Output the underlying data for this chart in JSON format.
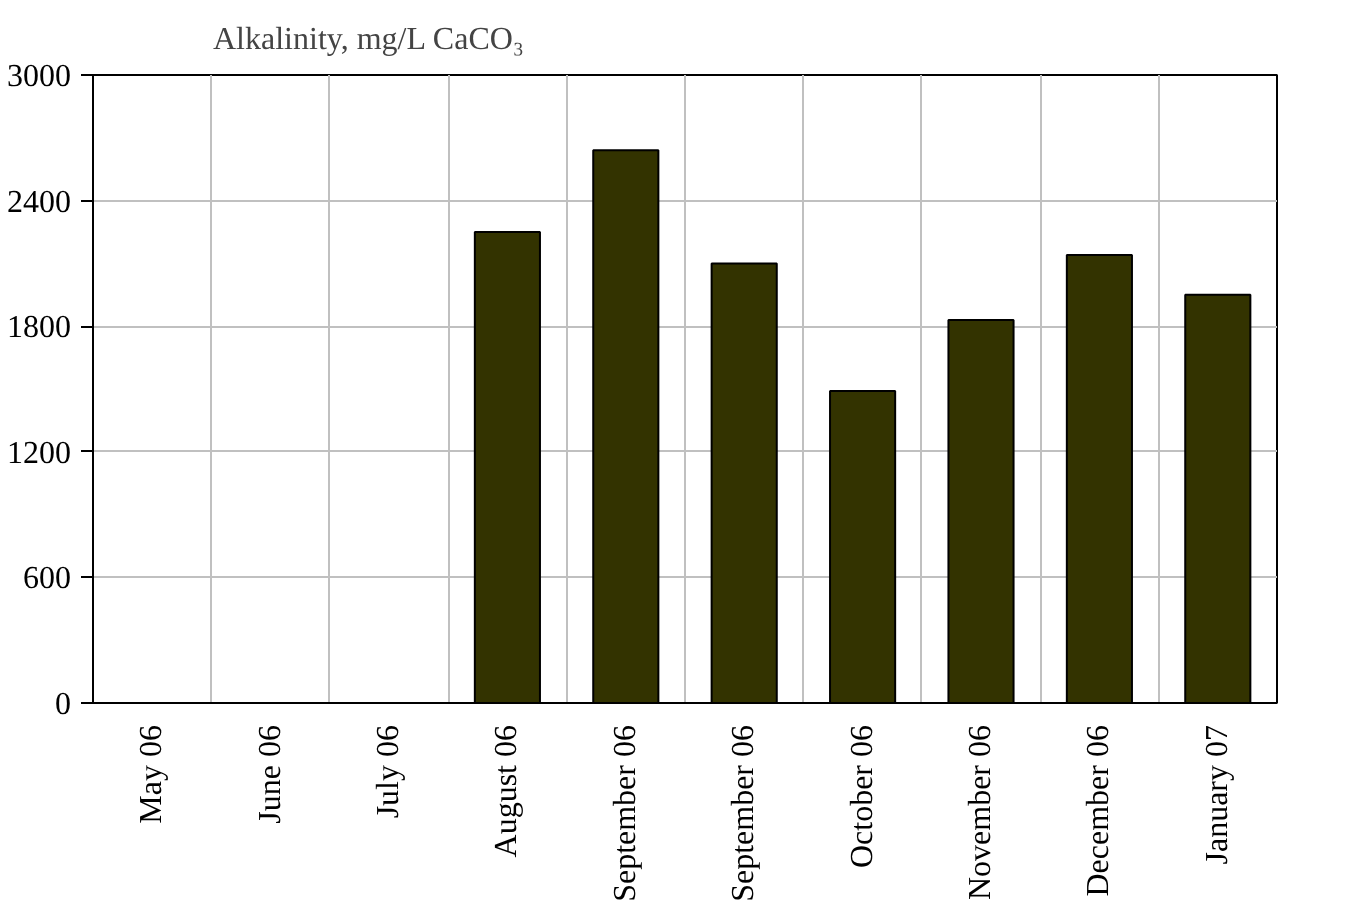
{
  "chart_data": {
    "type": "bar",
    "title": "Alkalinity, mg/L CaCO₃",
    "categories": [
      "May 06",
      "June 06",
      "July 06",
      "August 06",
      "September 06",
      "September 06",
      "October 06",
      "November 06",
      "December 06",
      "January 07"
    ],
    "values": [
      null,
      null,
      null,
      2250,
      2640,
      2100,
      1490,
      1830,
      2140,
      1950
    ],
    "color": "#333300",
    "ylim": [
      0,
      3000
    ],
    "yticks": [
      0,
      600,
      1200,
      1800,
      2400,
      3000
    ],
    "grid": true
  }
}
